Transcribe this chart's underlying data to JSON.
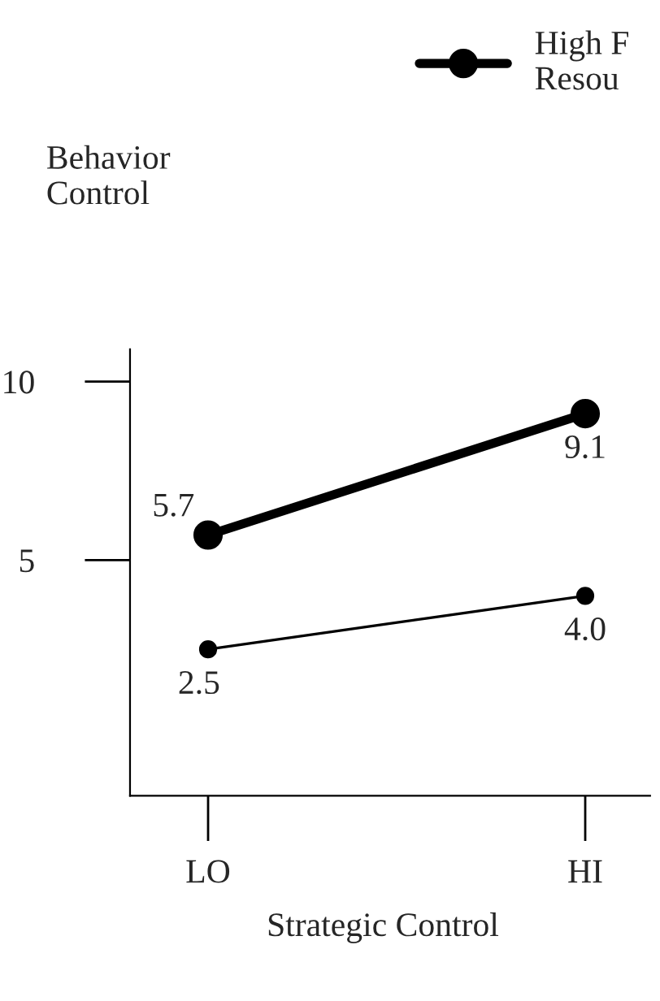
{
  "chart_data": {
    "type": "line",
    "categories": [
      "LO",
      "HI"
    ],
    "series": [
      {
        "name": "High F\nResou",
        "color": "#000000",
        "values": [
          5.7,
          9.1
        ],
        "value_labels": [
          "5.7",
          "9.1"
        ]
      },
      {
        "color": "#000000",
        "values": [
          2.5,
          4.0
        ],
        "value_labels": [
          "2.5",
          "4.0"
        ]
      }
    ],
    "ylabel": "Behavior\nControl",
    "xlabel": "Strategic Control",
    "ylim": [
      -1.6,
      10.9
    ],
    "yticks": [
      5,
      10
    ],
    "marker": "circle",
    "legend": "top right",
    "grid": false
  }
}
